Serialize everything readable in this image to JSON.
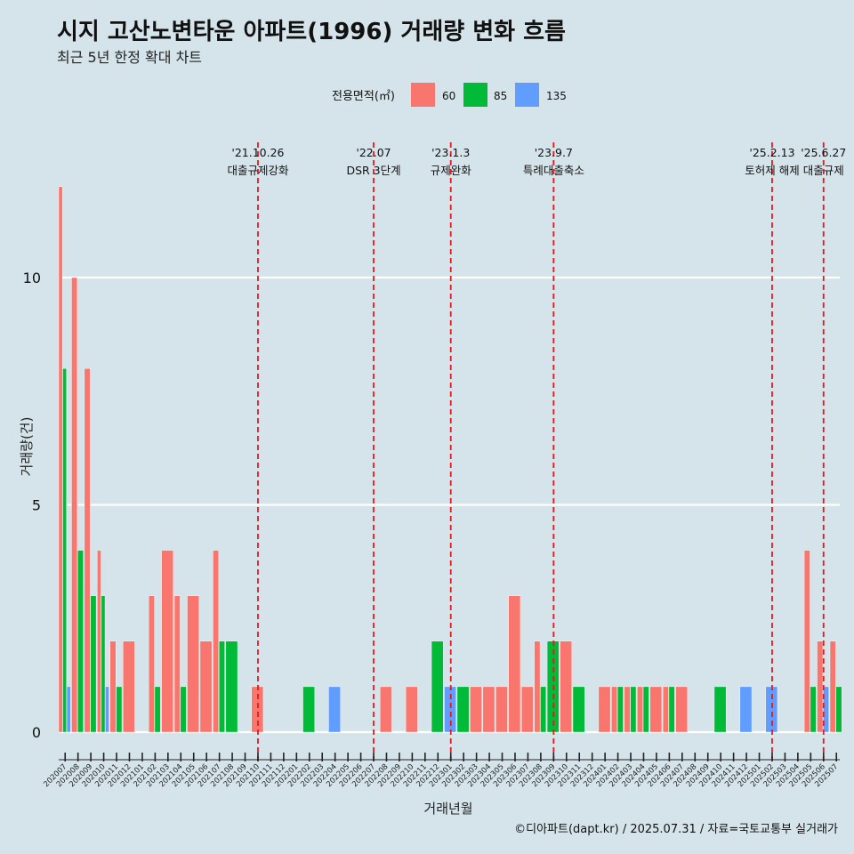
{
  "title": "시지 고산노변타운 아파트(1996) 거래량 변화 흐름",
  "subtitle": "최근 5년 한정 확대 차트",
  "caption": "©디아파트(dapt.kr) / 2025.07.31 / 자료=국토교통부 실거래가",
  "colors": {
    "background": "#d5e4ea",
    "s60": "#f8766d",
    "s85": "#00ba38",
    "s135": "#619cff",
    "event_line": "#e31a1c",
    "grid": "#ffffff"
  },
  "chart_data": {
    "type": "bar",
    "title": "시지 고산노변타운 아파트(1996) 거래량 변화 흐름",
    "subtitle": "최근 5년 한정 확대 차트",
    "xlabel": "거래년월",
    "ylabel": "거래량(건)",
    "ylim": [
      0,
      12
    ],
    "yticks": [
      0,
      5,
      10
    ],
    "grid": true,
    "legend": {
      "title": "전용면적(㎡)",
      "position": "top"
    },
    "categories": [
      "202007",
      "202008",
      "202009",
      "202010",
      "202011",
      "202012",
      "202101",
      "202102",
      "202103",
      "202104",
      "202105",
      "202106",
      "202107",
      "202108",
      "202109",
      "202110",
      "202111",
      "202112",
      "202201",
      "202202",
      "202203",
      "202204",
      "202205",
      "202206",
      "202207",
      "202208",
      "202209",
      "202210",
      "202211",
      "202212",
      "202301",
      "202302",
      "202303",
      "202304",
      "202305",
      "202306",
      "202307",
      "202308",
      "202309",
      "202310",
      "202311",
      "202312",
      "202401",
      "202402",
      "202403",
      "202404",
      "202405",
      "202406",
      "202407",
      "202408",
      "202409",
      "202410",
      "202411",
      "202412",
      "202501",
      "202502",
      "202503",
      "202504",
      "202505",
      "202506",
      "202507"
    ],
    "series": [
      {
        "name": "60",
        "color": "#f8766d",
        "values": [
          12,
          10,
          8,
          4,
          2,
          2,
          0,
          3,
          4,
          3,
          3,
          2,
          4,
          0,
          0,
          1,
          0,
          0,
          0,
          0,
          0,
          0,
          0,
          0,
          0,
          1,
          0,
          1,
          0,
          0,
          0,
          0,
          1,
          1,
          1,
          3,
          1,
          2,
          0,
          2,
          0,
          0,
          1,
          1,
          1,
          1,
          1,
          1,
          1,
          0,
          0,
          0,
          0,
          0,
          0,
          0,
          0,
          0,
          4,
          2,
          2
        ]
      },
      {
        "name": "85",
        "color": "#00ba38",
        "values": [
          8,
          4,
          3,
          3,
          1,
          0,
          0,
          1,
          0,
          1,
          0,
          0,
          2,
          2,
          0,
          0,
          0,
          0,
          0,
          1,
          0,
          0,
          0,
          0,
          0,
          0,
          0,
          0,
          0,
          2,
          0,
          1,
          0,
          0,
          0,
          0,
          0,
          1,
          2,
          0,
          1,
          0,
          0,
          1,
          1,
          1,
          0,
          1,
          0,
          0,
          0,
          1,
          0,
          0,
          0,
          0,
          0,
          0,
          1,
          0,
          1
        ]
      },
      {
        "name": "135",
        "color": "#619cff",
        "values": [
          1,
          0,
          0,
          1,
          0,
          0,
          0,
          0,
          0,
          0,
          0,
          0,
          0,
          0,
          0,
          0,
          0,
          0,
          0,
          0,
          0,
          1,
          0,
          0,
          0,
          0,
          0,
          0,
          0,
          0,
          1,
          0,
          0,
          0,
          0,
          0,
          0,
          0,
          0,
          0,
          0,
          0,
          0,
          0,
          0,
          0,
          0,
          0,
          0,
          0,
          0,
          0,
          0,
          1,
          0,
          1,
          0,
          0,
          0,
          1,
          0
        ]
      }
    ],
    "events": [
      {
        "month": "202110",
        "date": "'21.10.26",
        "label": "대출규제강화"
      },
      {
        "month": "202207",
        "date": "'22.07",
        "label": "DSR 3단계"
      },
      {
        "month": "202301",
        "date": "'23.1.3",
        "label": "규제완화"
      },
      {
        "month": "202309",
        "date": "'23.9.7",
        "label": "특례대출축소"
      },
      {
        "month": "202502",
        "date": "'25.2.13",
        "label": "토허제 해제"
      },
      {
        "month": "202506",
        "date": "'25.6.27",
        "label": "대출규제"
      }
    ]
  }
}
